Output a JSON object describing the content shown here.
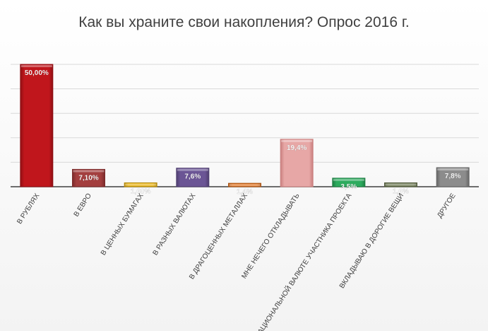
{
  "chart_data": {
    "type": "bar",
    "title": "Как вы храните свои накопления? Опрос 2016 г.",
    "xlabel": "",
    "ylabel": "",
    "ylim": [
      0,
      50
    ],
    "grid": true,
    "legend": "none",
    "categories": [
      "В РУБЛЯХ",
      "В ЕВРО",
      "В ЦЕННЫХ БУМАГАХ",
      "В РАЗНЫХ ВАЛЮТАХ",
      "В ДРАГОЦЕННЫХ МЕТАЛЛАХ",
      "МНЕ НЕЧЕГО ОТКЛАДЫВАТЬ",
      "В НАЦИОНАЛЬНОЙ ВАЛЮТЕ УЧАСТНИКА ПРОЕКТА",
      "ВКЛАДЫВАЮ В ДОРОГИЕ ВЕЩИ",
      "ДРУГОЕ"
    ],
    "values": [
      50.0,
      7.1,
      1.6,
      7.6,
      1.4,
      19.4,
      3.5,
      1.6,
      7.8
    ],
    "data_labels": [
      "50,00%",
      "7,10%",
      "1,60%",
      "7,6%",
      "1,4%",
      "19,4%",
      "3,5%",
      "1,6%",
      "7,8%"
    ],
    "colors": [
      "#c0161c",
      "#a33e3e",
      "#e8b416",
      "#6b5595",
      "#e0701c",
      "#e7a7a6",
      "#2dab5e",
      "#6e7a53",
      "#8c8c8c"
    ],
    "colors_dark": [
      "#8f0f14",
      "#7a2b2b",
      "#b58a0c",
      "#4f3f70",
      "#a85212",
      "#c97f7e",
      "#1f7f44",
      "#525b3d",
      "#666666"
    ]
  }
}
